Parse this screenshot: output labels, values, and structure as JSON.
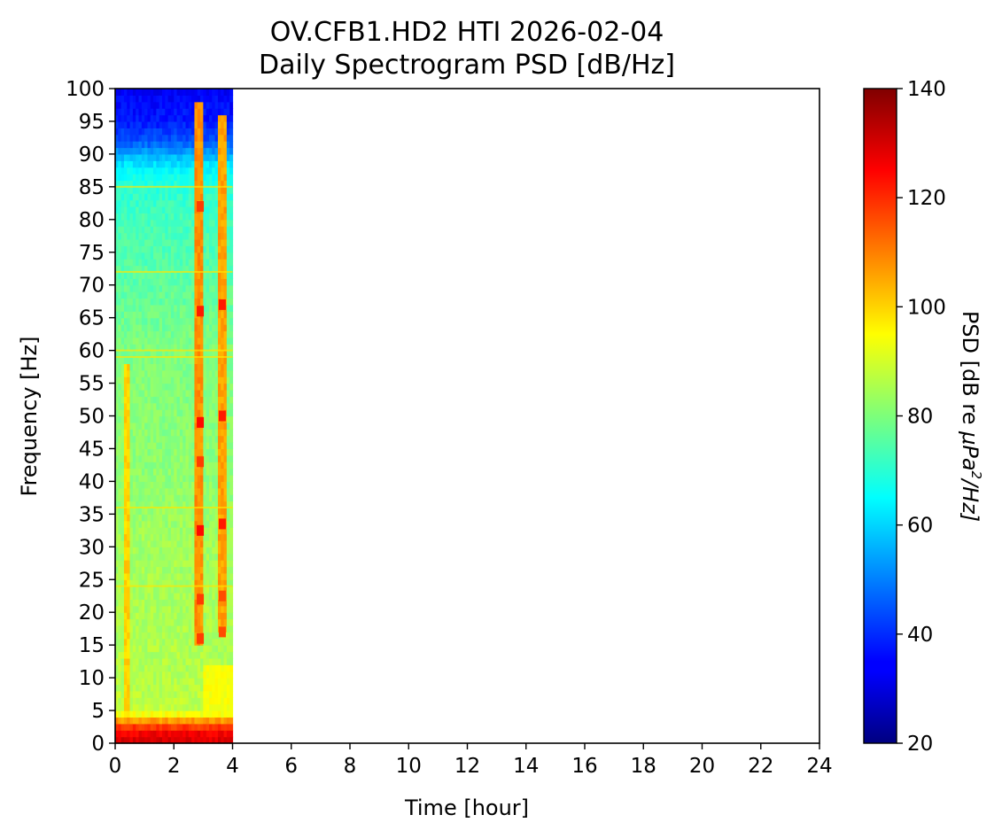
{
  "chart_data": {
    "type": "heatmap",
    "title": "OV.CFB1.HD2 HTI 2026-02-04",
    "subtitle": "Daily Spectrogram PSD [dB/Hz]",
    "xlabel": "Time [hour]",
    "ylabel": "Frequency [Hz]",
    "xlim": [
      0,
      24
    ],
    "ylim": [
      0,
      100
    ],
    "x_ticks": [
      "0",
      "2",
      "4",
      "6",
      "8",
      "10",
      "12",
      "14",
      "16",
      "18",
      "20",
      "22",
      "24"
    ],
    "y_ticks": [
      "0",
      "5",
      "10",
      "15",
      "20",
      "25",
      "30",
      "35",
      "40",
      "45",
      "50",
      "55",
      "60",
      "65",
      "70",
      "75",
      "80",
      "85",
      "90",
      "95",
      "100"
    ],
    "data_time_range": [
      0,
      4
    ],
    "colorbar": {
      "label_prefix": "PSD [dB re ",
      "label_unit": "μPa",
      "label_sup": "2",
      "label_suffix": "/Hz]",
      "range": [
        20,
        140
      ],
      "ticks": [
        "20",
        "40",
        "60",
        "80",
        "100",
        "120",
        "140"
      ],
      "colormap": "jet"
    },
    "psd_profile": {
      "freq_hz": [
        0,
        2,
        5,
        10,
        20,
        30,
        40,
        50,
        60,
        70,
        80,
        85,
        88,
        90,
        92,
        95,
        100
      ],
      "psd_db": [
        130,
        125,
        88,
        86,
        85,
        84,
        82,
        81,
        80,
        76,
        73,
        70,
        64,
        55,
        45,
        38,
        34
      ]
    },
    "events": [
      {
        "t_start": 0.35,
        "t_end": 0.5,
        "f_low": 3,
        "f_high": 58,
        "psd_db": 100
      },
      {
        "t_start": 2.75,
        "t_end": 3.0,
        "f_low": 15,
        "f_high": 98,
        "psd_db": 108
      },
      {
        "t_start": 3.5,
        "t_end": 3.75,
        "f_low": 17,
        "f_high": 96,
        "psd_db": 106
      }
    ],
    "hotspots": [
      {
        "t": 2.9,
        "f": 82,
        "psd_db": 118
      },
      {
        "t": 2.9,
        "f": 66,
        "psd_db": 122
      },
      {
        "t": 2.9,
        "f": 49,
        "psd_db": 124
      },
      {
        "t": 2.9,
        "f": 43,
        "psd_db": 118
      },
      {
        "t": 2.9,
        "f": 32.5,
        "psd_db": 124
      },
      {
        "t": 2.9,
        "f": 22,
        "psd_db": 118
      },
      {
        "t": 2.9,
        "f": 16,
        "psd_db": 118
      },
      {
        "t": 3.65,
        "f": 67,
        "psd_db": 122
      },
      {
        "t": 3.65,
        "f": 50,
        "psd_db": 122
      },
      {
        "t": 3.65,
        "f": 33.5,
        "psd_db": 122
      },
      {
        "t": 3.65,
        "f": 22.5,
        "psd_db": 116
      },
      {
        "t": 3.65,
        "f": 17,
        "psd_db": 116
      }
    ],
    "tonal_lines_hz": [
      24,
      36,
      59,
      60,
      72,
      85
    ]
  }
}
